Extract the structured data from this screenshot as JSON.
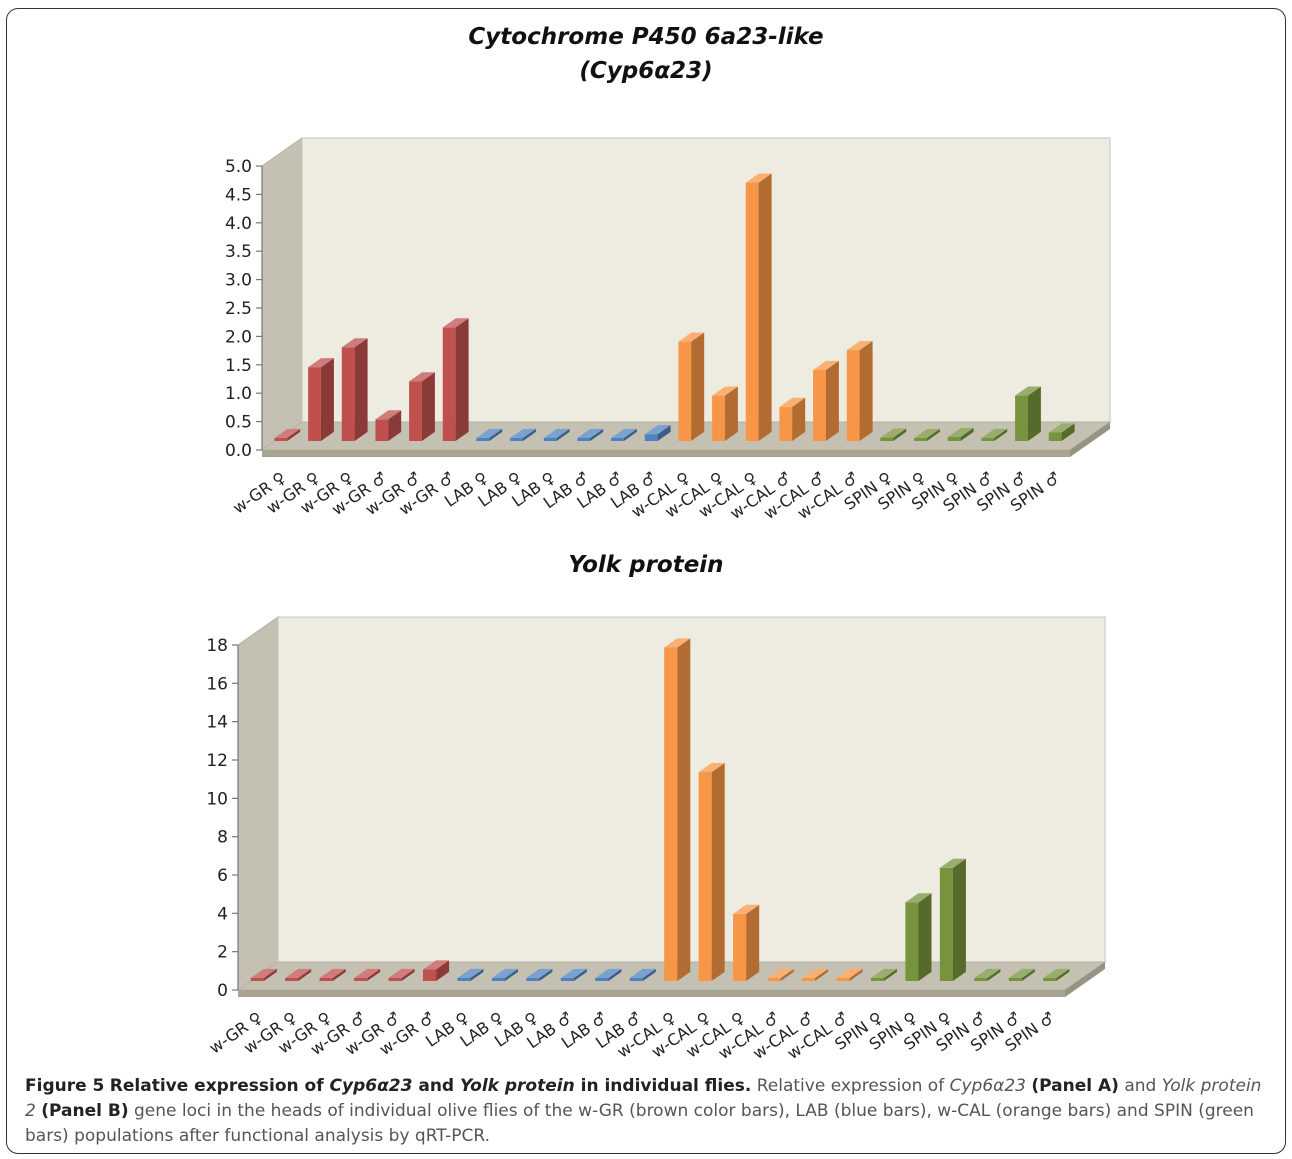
{
  "chart_data": [
    {
      "panel": "A",
      "type": "bar",
      "title": "Cytochrome P450 6a23-like",
      "subtitle": "(Cyp6α23)",
      "categories": [
        "w-GR ♀",
        "w-GR ♀",
        "w-GR ♀",
        "w-GR ♂",
        "w-GR ♂",
        "w-GR ♂",
        "LAB ♀",
        "LAB ♀",
        "LAB ♀",
        "LAB ♂",
        "LAB ♂",
        "LAB ♂",
        "w-CAL ♀",
        "w-CAL ♀",
        "w-CAL ♀",
        "w-CAL ♂",
        "w-CAL ♂",
        "w-CAL ♂",
        "SPIN ♀",
        "SPIN ♀",
        "SPIN ♀",
        "SPIN ♂",
        "SPIN ♂",
        "SPIN ♂"
      ],
      "values": [
        0.0,
        1.3,
        1.65,
        0.38,
        1.05,
        2.0,
        0.02,
        0.04,
        0.02,
        0.02,
        0.02,
        0.12,
        1.75,
        0.8,
        4.55,
        0.6,
        1.25,
        1.6,
        0.06,
        0.03,
        0.07,
        0.01,
        0.8,
        0.15
      ],
      "colors": [
        "#c0504d",
        "#c0504d",
        "#c0504d",
        "#c0504d",
        "#c0504d",
        "#c0504d",
        "#4f81bd",
        "#4f81bd",
        "#4f81bd",
        "#4f81bd",
        "#4f81bd",
        "#4f81bd",
        "#f79646",
        "#f79646",
        "#f79646",
        "#f79646",
        "#f79646",
        "#f79646",
        "#77933c",
        "#77933c",
        "#77933c",
        "#77933c",
        "#77933c",
        "#77933c"
      ],
      "yticks": [
        "0.0",
        "0.5",
        "1.0",
        "1.5",
        "2.0",
        "2.5",
        "3.0",
        "3.5",
        "4.0",
        "4.5",
        "5.0"
      ],
      "ylim": [
        0,
        5
      ],
      "xlabel": "",
      "ylabel": ""
    },
    {
      "panel": "B",
      "type": "bar",
      "title": "Yolk protein",
      "categories": [
        "w-GR ♀",
        "w-GR ♀",
        "w-GR ♀",
        "w-GR ♂",
        "w-GR ♂",
        "w-GR ♂",
        "LAB ♀",
        "LAB ♀",
        "LAB ♀",
        "LAB ♂",
        "LAB ♂",
        "LAB ♂",
        "w-CAL ♀",
        "w-CAL ♀",
        "w-CAL ♀",
        "w-CAL ♂",
        "w-CAL ♂",
        "w-CAL ♂",
        "SPIN ♀",
        "SPIN ♀",
        "SPIN ♀",
        "SPIN ♂",
        "SPIN ♂",
        "SPIN ♂"
      ],
      "values": [
        0.02,
        0.04,
        0.02,
        0.02,
        0.02,
        0.6,
        0.02,
        0.02,
        0.02,
        0.02,
        0.02,
        0.02,
        17.4,
        10.9,
        3.5,
        0.02,
        0.02,
        0.02,
        0.02,
        4.1,
        5.9,
        0.02,
        0.02,
        0.02
      ],
      "colors": [
        "#c0504d",
        "#c0504d",
        "#c0504d",
        "#c0504d",
        "#c0504d",
        "#c0504d",
        "#4f81bd",
        "#4f81bd",
        "#4f81bd",
        "#4f81bd",
        "#4f81bd",
        "#4f81bd",
        "#f79646",
        "#f79646",
        "#f79646",
        "#f79646",
        "#f79646",
        "#f79646",
        "#77933c",
        "#77933c",
        "#77933c",
        "#77933c",
        "#77933c",
        "#77933c"
      ],
      "yticks": [
        "0",
        "2",
        "4",
        "6",
        "8",
        "10",
        "12",
        "14",
        "16",
        "18"
      ],
      "ylim": [
        0,
        18
      ],
      "xlabel": "",
      "ylabel": ""
    }
  ],
  "caption": {
    "lead": "Figure 5",
    "headline_1": "Relative expression of ",
    "headline_gene": "Cyp6α23",
    "headline_2": " and ",
    "headline_gene2": "Yolk protein",
    "headline_3": " in individual flies.",
    "t1": " Relative expression of ",
    "gene_a": "Cyp6α23",
    "panel_a": "(Panel A)",
    "t2": " and ",
    "gene_b": "Yolk protein 2",
    "panel_b": "(Panel B)",
    "t3": " gene loci in the heads of individual olive flies of the w-GR (brown color bars), LAB (blue bars), w-CAL (orange bars) and SPIN (green bars) populations after functional analysis by qRT-PCR."
  }
}
